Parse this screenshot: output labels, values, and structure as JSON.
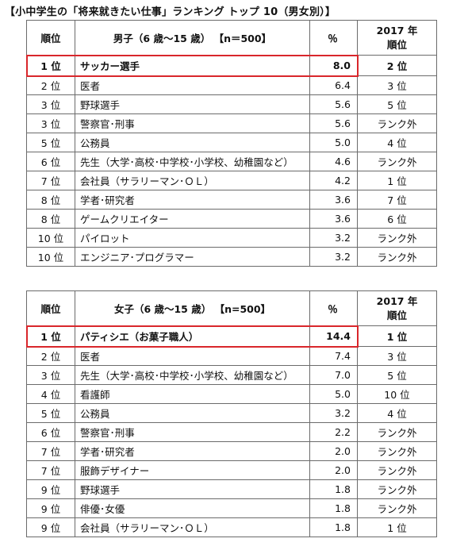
{
  "heading": "【小中学生の「将来就きたい仕事」ランキング トップ 10（男女別）】",
  "tables": [
    {
      "header": {
        "rank": "順位",
        "group": "男子（6 歳～15 歳） 【n＝500】",
        "pct": "％",
        "prev_line1": "2017 年",
        "prev_line2": "順位"
      },
      "rows": [
        {
          "rank": "1 位",
          "job": "サッカー選手",
          "pct": "8.0",
          "prev": "2 位"
        },
        {
          "rank": "2 位",
          "job": "医者",
          "pct": "6.4",
          "prev": "3 位"
        },
        {
          "rank": "3 位",
          "job": "野球選手",
          "pct": "5.6",
          "prev": "5 位"
        },
        {
          "rank": "3 位",
          "job": "警察官･刑事",
          "pct": "5.6",
          "prev": "ランク外"
        },
        {
          "rank": "5 位",
          "job": "公務員",
          "pct": "5.0",
          "prev": "4 位"
        },
        {
          "rank": "6 位",
          "job": "先生（大学･高校･中学校･小学校、幼稚園など）",
          "pct": "4.6",
          "prev": "ランク外"
        },
        {
          "rank": "7 位",
          "job": "会社員（サラリーマン･ＯＬ）",
          "pct": "4.2",
          "prev": "1 位"
        },
        {
          "rank": "8 位",
          "job": "学者･研究者",
          "pct": "3.6",
          "prev": "7 位"
        },
        {
          "rank": "8 位",
          "job": "ゲームクリエイター",
          "pct": "3.6",
          "prev": "6 位"
        },
        {
          "rank": "10 位",
          "job": "パイロット",
          "pct": "3.2",
          "prev": "ランク外"
        },
        {
          "rank": "10 位",
          "job": "エンジニア･プログラマー",
          "pct": "3.2",
          "prev": "ランク外"
        }
      ]
    },
    {
      "header": {
        "rank": "順位",
        "group": "女子（6 歳～15 歳） 【n=500】",
        "pct": "％",
        "prev_line1": "2017 年",
        "prev_line2": "順位"
      },
      "rows": [
        {
          "rank": "1 位",
          "job": "パティシエ（お菓子職人）",
          "pct": "14.4",
          "prev": "1 位"
        },
        {
          "rank": "2 位",
          "job": "医者",
          "pct": "7.4",
          "prev": "3 位"
        },
        {
          "rank": "3 位",
          "job": "先生（大学･高校･中学校･小学校、幼稚園など）",
          "pct": "7.0",
          "prev": "5 位"
        },
        {
          "rank": "4 位",
          "job": "看護師",
          "pct": "5.0",
          "prev": "10 位"
        },
        {
          "rank": "5 位",
          "job": "公務員",
          "pct": "3.2",
          "prev": "4 位"
        },
        {
          "rank": "6 位",
          "job": "警察官･刑事",
          "pct": "2.2",
          "prev": "ランク外"
        },
        {
          "rank": "7 位",
          "job": "学者･研究者",
          "pct": "2.0",
          "prev": "ランク外"
        },
        {
          "rank": "7 位",
          "job": "服飾デザイナー",
          "pct": "2.0",
          "prev": "ランク外"
        },
        {
          "rank": "9 位",
          "job": "野球選手",
          "pct": "1.8",
          "prev": "ランク外"
        },
        {
          "rank": "9 位",
          "job": "俳優･女優",
          "pct": "1.8",
          "prev": "ランク外"
        },
        {
          "rank": "9 位",
          "job": "会社員（サラリーマン･ＯＬ）",
          "pct": "1.8",
          "prev": "1 位"
        }
      ]
    }
  ],
  "highlight_color": "#d9262b"
}
